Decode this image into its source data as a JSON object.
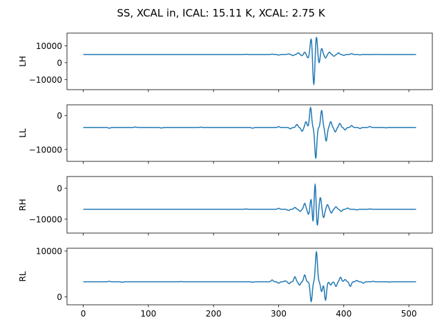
{
  "figure": {
    "suptitle": "SS, XCAL in, ICAL: 15.11 K, XCAL: 2.75 K"
  },
  "chart_data": [
    {
      "type": "line",
      "ylabel": "LH",
      "xlim": [
        -25,
        536
      ],
      "ylim": [
        -16000,
        17500
      ],
      "yticks": [
        -10000,
        0,
        10000
      ],
      "xticks": [
        0,
        100,
        200,
        300,
        400,
        500
      ],
      "show_xticklabels": false,
      "grid": false,
      "line_color": "#1f77b4",
      "baseline": 4800,
      "x_range": [
        0,
        511
      ],
      "features": [
        {
          "x": 250,
          "y": 4950
        },
        {
          "x": 290,
          "y": 5050
        },
        {
          "x": 300,
          "y": 4500
        },
        {
          "x": 315,
          "y": 5200
        },
        {
          "x": 322,
          "y": 4200
        },
        {
          "x": 330,
          "y": 5800
        },
        {
          "x": 336,
          "y": 4100
        },
        {
          "x": 340,
          "y": 6200
        },
        {
          "x": 345,
          "y": 2800
        },
        {
          "x": 350,
          "y": 14500
        },
        {
          "x": 354,
          "y": -13500
        },
        {
          "x": 358,
          "y": 15800
        },
        {
          "x": 362,
          "y": -500
        },
        {
          "x": 366,
          "y": 8500
        },
        {
          "x": 372,
          "y": 2800
        },
        {
          "x": 378,
          "y": 6200
        },
        {
          "x": 385,
          "y": 3800
        },
        {
          "x": 392,
          "y": 5800
        },
        {
          "x": 400,
          "y": 4300
        },
        {
          "x": 412,
          "y": 5300
        },
        {
          "x": 425,
          "y": 4600
        },
        {
          "x": 450,
          "y": 4850
        }
      ]
    },
    {
      "type": "line",
      "ylabel": "LL",
      "xlim": [
        -25,
        536
      ],
      "ylim": [
        -13500,
        3200
      ],
      "yticks": [
        -10000,
        0
      ],
      "xticks": [
        0,
        100,
        200,
        300,
        400,
        500
      ],
      "show_xticklabels": false,
      "grid": false,
      "line_color": "#1f77b4",
      "baseline": -3500,
      "x_range": [
        0,
        511
      ],
      "features": [
        {
          "x": 40,
          "y": -3700
        },
        {
          "x": 80,
          "y": -3350
        },
        {
          "x": 120,
          "y": -3650
        },
        {
          "x": 180,
          "y": -3400
        },
        {
          "x": 260,
          "y": -3700
        },
        {
          "x": 300,
          "y": -3250
        },
        {
          "x": 318,
          "y": -3900
        },
        {
          "x": 328,
          "y": -2600
        },
        {
          "x": 336,
          "y": -4600
        },
        {
          "x": 342,
          "y": -1800
        },
        {
          "x": 349,
          "y": 2400
        },
        {
          "x": 357,
          "y": -12500
        },
        {
          "x": 366,
          "y": 1500
        },
        {
          "x": 373,
          "y": -7500
        },
        {
          "x": 380,
          "y": -1800
        },
        {
          "x": 387,
          "y": -4800
        },
        {
          "x": 394,
          "y": -2300
        },
        {
          "x": 402,
          "y": -4200
        },
        {
          "x": 412,
          "y": -2900
        },
        {
          "x": 425,
          "y": -3800
        },
        {
          "x": 440,
          "y": -3200
        },
        {
          "x": 465,
          "y": -3600
        }
      ]
    },
    {
      "type": "line",
      "ylabel": "RH",
      "xlim": [
        -25,
        536
      ],
      "ylim": [
        -14500,
        3800
      ],
      "yticks": [
        -10000,
        0
      ],
      "xticks": [
        0,
        100,
        200,
        300,
        400,
        500
      ],
      "show_xticklabels": false,
      "grid": false,
      "line_color": "#1f77b4",
      "baseline": -6800,
      "x_range": [
        0,
        511
      ],
      "features": [
        {
          "x": 250,
          "y": -6700
        },
        {
          "x": 300,
          "y": -6500
        },
        {
          "x": 315,
          "y": -7200
        },
        {
          "x": 325,
          "y": -6200
        },
        {
          "x": 333,
          "y": -7500
        },
        {
          "x": 340,
          "y": -4900
        },
        {
          "x": 346,
          "y": -8500
        },
        {
          "x": 350,
          "y": -2900
        },
        {
          "x": 353,
          "y": -12500
        },
        {
          "x": 356,
          "y": 3000
        },
        {
          "x": 359,
          "y": -13000
        },
        {
          "x": 364,
          "y": -3000
        },
        {
          "x": 369,
          "y": -9500
        },
        {
          "x": 375,
          "y": -5300
        },
        {
          "x": 381,
          "y": -8000
        },
        {
          "x": 388,
          "y": -6000
        },
        {
          "x": 396,
          "y": -7500
        },
        {
          "x": 406,
          "y": -6400
        },
        {
          "x": 420,
          "y": -7000
        },
        {
          "x": 440,
          "y": -6700
        }
      ]
    },
    {
      "type": "line",
      "ylabel": "RL",
      "xlim": [
        -25,
        536
      ],
      "ylim": [
        -1700,
        10600
      ],
      "yticks": [
        0,
        10000
      ],
      "xticks": [
        0,
        100,
        200,
        300,
        400,
        500
      ],
      "show_xticklabels": true,
      "grid": false,
      "line_color": "#1f77b4",
      "baseline": 3300,
      "x_range": [
        0,
        511
      ],
      "features": [
        {
          "x": 40,
          "y": 3400
        },
        {
          "x": 60,
          "y": 3200
        },
        {
          "x": 150,
          "y": 3350
        },
        {
          "x": 260,
          "y": 3200
        },
        {
          "x": 290,
          "y": 3700
        },
        {
          "x": 300,
          "y": 3000
        },
        {
          "x": 310,
          "y": 3500
        },
        {
          "x": 316,
          "y": 2900
        },
        {
          "x": 325,
          "y": 4400
        },
        {
          "x": 332,
          "y": 2600
        },
        {
          "x": 340,
          "y": 4800
        },
        {
          "x": 350,
          "y": -1000
        },
        {
          "x": 358,
          "y": 9800
        },
        {
          "x": 366,
          "y": 1200
        },
        {
          "x": 372,
          "y": -700
        },
        {
          "x": 380,
          "y": 2600
        },
        {
          "x": 388,
          "y": 2300
        },
        {
          "x": 395,
          "y": 4300
        },
        {
          "x": 402,
          "y": 3800
        },
        {
          "x": 410,
          "y": 2300
        },
        {
          "x": 420,
          "y": 3600
        },
        {
          "x": 430,
          "y": 3000
        },
        {
          "x": 445,
          "y": 3400
        },
        {
          "x": 470,
          "y": 3250
        }
      ]
    }
  ]
}
